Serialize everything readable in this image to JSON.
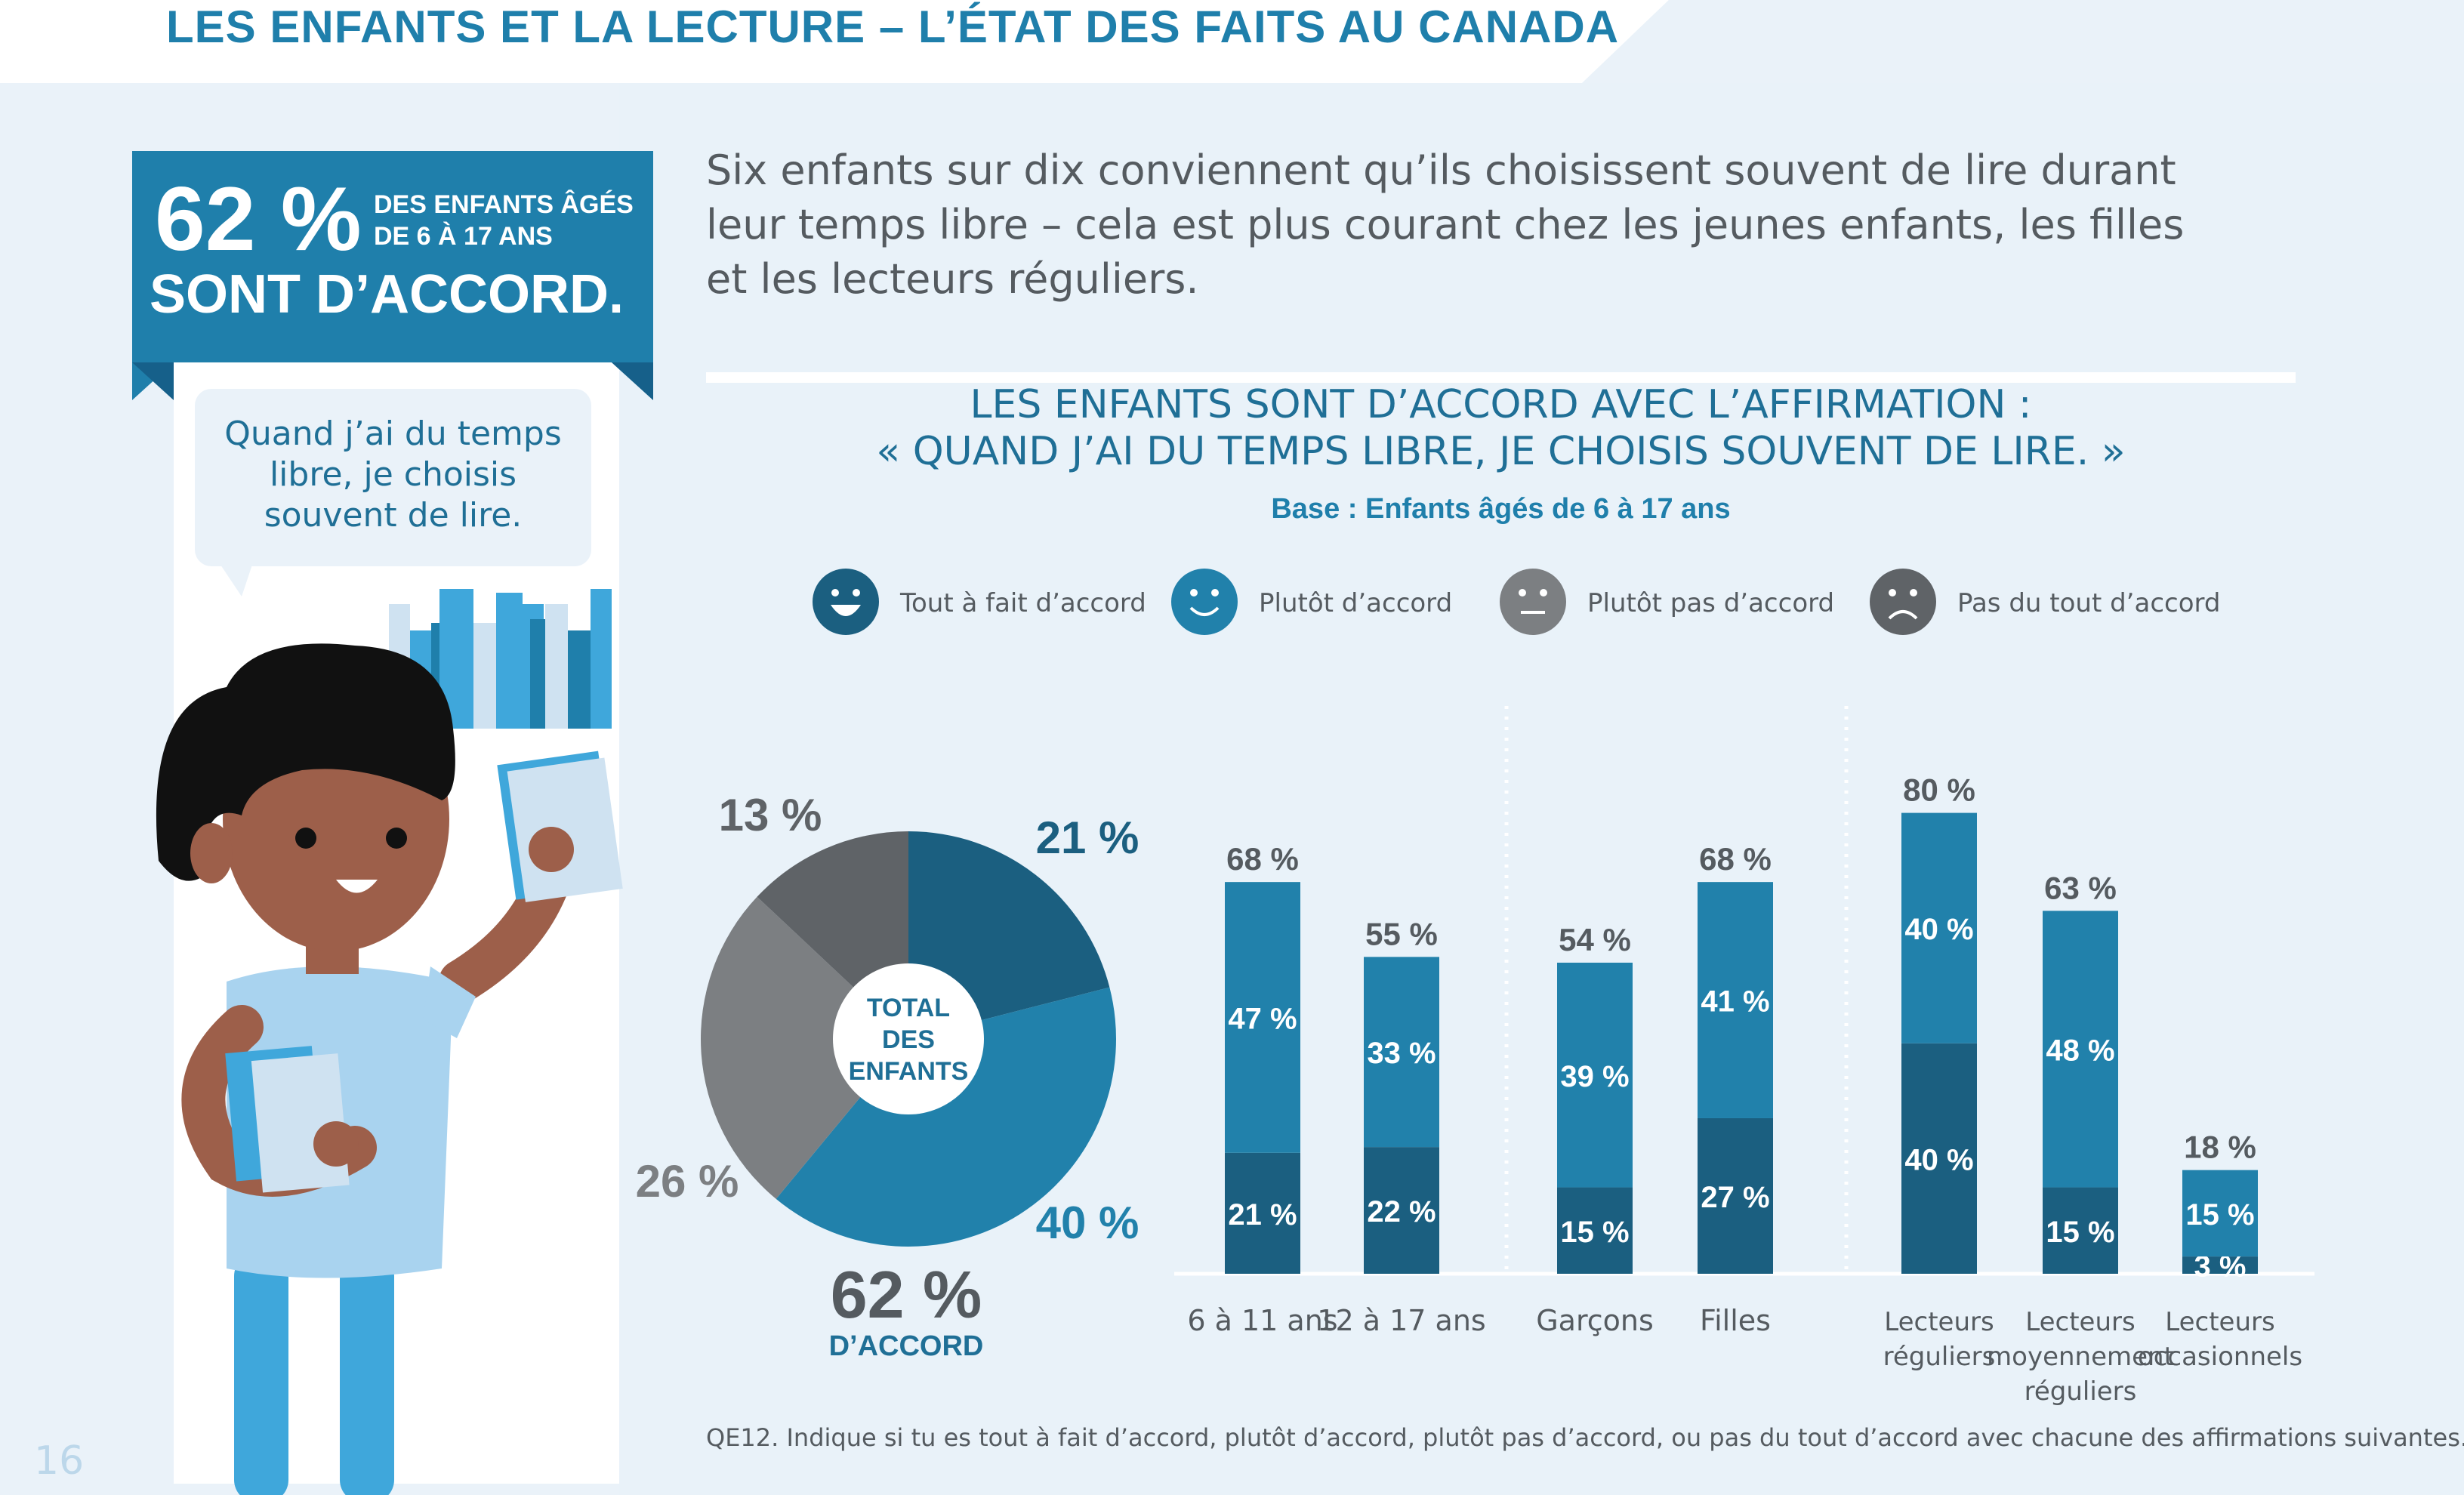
{
  "header": {
    "title": "LES ENFANTS ET LA LECTURE – L’ÉTAT DES FAITS AU CANADA"
  },
  "banner": {
    "percent": "62 %",
    "line1": "DES ENFANTS ÂGÉS\nDE 6 À 17 ANS",
    "line2": "SONT D’ACCORD."
  },
  "bubble": {
    "text": "Quand j’ai du temps\nlibre, je choisis\nsouvent de lire."
  },
  "intro": {
    "text": "Six enfants sur dix conviennent qu’ils choisissent souvent de lire durant\nleur temps libre – cela est plus courant chez les jeunes enfants, les filles\net les lecteurs réguliers."
  },
  "page_number": "16",
  "footnote": "QE12. Indique si tu es tout à fait d’accord, plutôt d’accord, plutôt pas d’accord, ou pas du tout d’accord avec chacune des affirmations suivantes.",
  "colors": {
    "dark": "#1b5f80",
    "mid": "#2181ab",
    "light_grey": "#7c7f82",
    "dark_grey": "#5f6367",
    "accent": "#1f7fab"
  },
  "chart_data": [
    {
      "type": "pie",
      "title_line1": "LES ENFANTS SONT D’ACCORD AVEC L’AFFIRMATION :",
      "title_line2": "« QUAND J’AI DU TEMPS LIBRE, JE CHOISIS SOUVENT DE LIRE. »",
      "subtitle": "Base : Enfants âgés de 6 à 17 ans",
      "center_label": "TOTAL\nDES\nENFANTS",
      "legend": [
        {
          "label": "Tout à fait d’accord",
          "icon": "big-smile-face-icon",
          "color": "#1b5f80"
        },
        {
          "label": "Plutôt d’accord",
          "icon": "smile-face-icon",
          "color": "#2181ab"
        },
        {
          "label": "Plutôt pas d’accord",
          "icon": "neutral-face-icon",
          "color": "#7c7f82"
        },
        {
          "label": "Pas du tout d’accord",
          "icon": "sad-face-icon",
          "color": "#5f6367"
        }
      ],
      "slices": [
        {
          "name": "Tout à fait d’accord",
          "value": 21,
          "label": "21 %",
          "color": "#1b5f80"
        },
        {
          "name": "Plutôt d’accord",
          "value": 40,
          "label": "40 %",
          "color": "#2181ab"
        },
        {
          "name": "Plutôt pas d’accord",
          "value": 26,
          "label": "26 %",
          "color": "#7c7f82"
        },
        {
          "name": "Pas du tout d’accord",
          "value": 13,
          "label": "13 %",
          "color": "#5f6367"
        }
      ],
      "total_value": "62 %",
      "total_label": "D’ACCORD"
    },
    {
      "type": "bar",
      "stacked": true,
      "groups": [
        {
          "categories": [
            "6 à 11 ans",
            "12 à 17 ans"
          ]
        },
        {
          "categories": [
            "Garçons",
            "Filles"
          ]
        },
        {
          "categories": [
            "Lecteurs\nréguliers",
            "Lecteurs\nmoyennement\nréguliers",
            "Lecteurs\noccasionnels"
          ]
        }
      ],
      "categories": [
        "6 à 11 ans",
        "12 à 17 ans",
        "Garçons",
        "Filles",
        "Lecteurs\nréguliers",
        "Lecteurs\nmoyennement\nréguliers",
        "Lecteurs\noccasionnels"
      ],
      "series": [
        {
          "name": "Tout à fait d’accord",
          "values": [
            21,
            22,
            15,
            27,
            40,
            15,
            3
          ],
          "labels": [
            "21 %",
            "22 %",
            "15 %",
            "27 %",
            "40 %",
            "15 %",
            "3 %"
          ],
          "color": "#1b5f80"
        },
        {
          "name": "Plutôt d’accord",
          "values": [
            47,
            33,
            39,
            41,
            40,
            48,
            15
          ],
          "labels": [
            "47 %",
            "33 %",
            "39 %",
            "41 %",
            "40 %",
            "48 %",
            "15 %"
          ],
          "color": "#2181ab"
        }
      ],
      "totals": [
        68,
        55,
        54,
        68,
        80,
        63,
        18
      ],
      "total_labels": [
        "68 %",
        "55 %",
        "54 %",
        "68 %",
        "80 %",
        "63 %",
        "18 %"
      ],
      "ylim": [
        0,
        100
      ]
    }
  ]
}
